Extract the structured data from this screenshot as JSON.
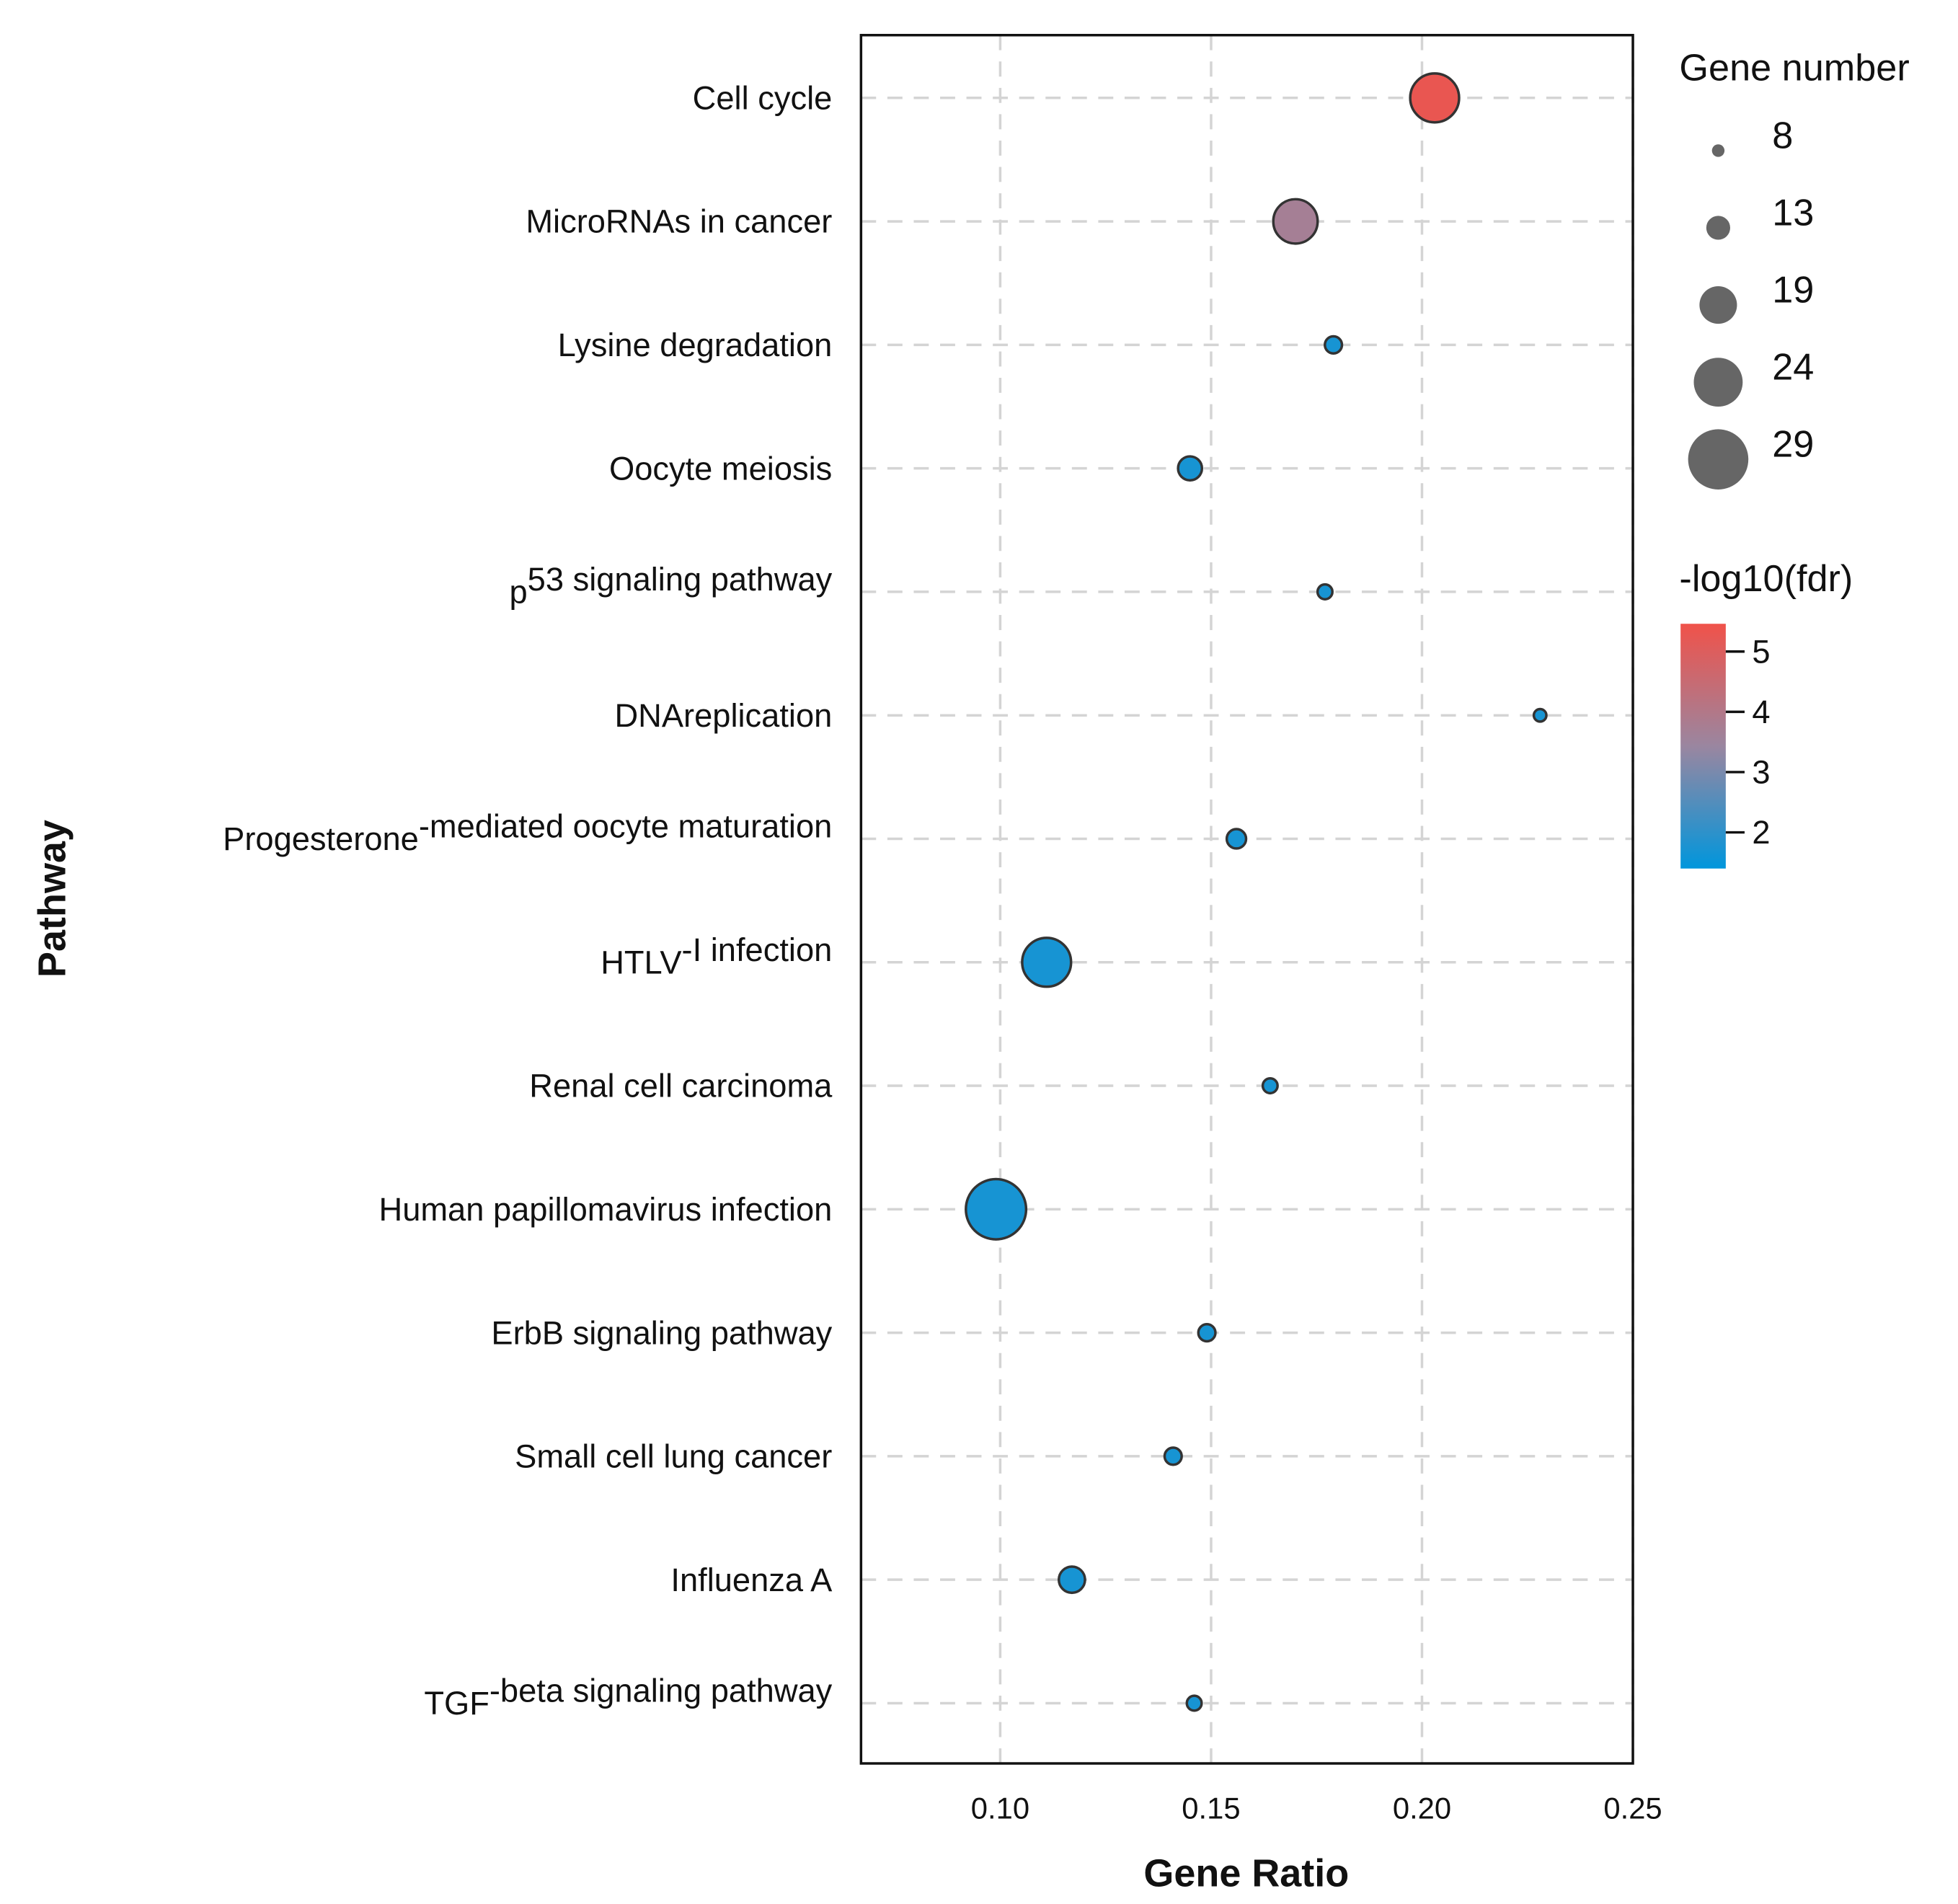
{
  "chart_data": {
    "type": "scatter",
    "subtype": "bubble",
    "xlabel": "Gene Ratio",
    "ylabel": "Pathway",
    "xlim": [
      0.067,
      0.25
    ],
    "xticks": [
      "0.10",
      "0.15",
      "0.20",
      "0.25"
    ],
    "xtick_values": [
      0.1,
      0.15,
      0.2,
      0.25
    ],
    "grid": true,
    "points": [
      {
        "pathway": "Cell cycle",
        "label_base": "Cell cycle",
        "label_sup": "",
        "gene_ratio": 0.203,
        "gene_number": 24,
        "neg_log10_fdr": 5.3
      },
      {
        "pathway": "MicroRNAs in cancer",
        "label_base": "MicroRNAs in cancer",
        "label_sup": "",
        "gene_ratio": 0.17,
        "gene_number": 22,
        "neg_log10_fdr": 3.7
      },
      {
        "pathway": "Lysine degradation",
        "label_base": "Lysine degradation",
        "label_sup": "",
        "gene_ratio": 0.179,
        "gene_number": 10,
        "neg_log10_fdr": 1.7
      },
      {
        "pathway": "Oocyte meiosis",
        "label_base": "Oocyte meiosis",
        "label_sup": "",
        "gene_ratio": 0.145,
        "gene_number": 13,
        "neg_log10_fdr": 1.7
      },
      {
        "pathway": "p53 signaling pathway",
        "label_base": "p",
        "label_sup": "53 signaling pathway",
        "gene_ratio": 0.177,
        "gene_number": 9,
        "neg_log10_fdr": 1.7
      },
      {
        "pathway": "DNAreplication",
        "label_base": "DNAreplication",
        "label_sup": "",
        "gene_ratio": 0.228,
        "gene_number": 8,
        "neg_log10_fdr": 1.7
      },
      {
        "pathway": "Progesterone-mediated oocyte maturation",
        "label_base": "Progesterone",
        "label_sup": "-mediated oocyte maturation",
        "gene_ratio": 0.156,
        "gene_number": 11,
        "neg_log10_fdr": 1.7
      },
      {
        "pathway": "HTLV-I infection",
        "label_base": "HTLV",
        "label_sup": "-I infection",
        "gene_ratio": 0.111,
        "gene_number": 24,
        "neg_log10_fdr": 1.7
      },
      {
        "pathway": "Renal cell carcinoma",
        "label_base": "Renal cell carcinoma",
        "label_sup": "",
        "gene_ratio": 0.164,
        "gene_number": 9,
        "neg_log10_fdr": 1.7
      },
      {
        "pathway": "Human papillomavirus infection",
        "label_base": "Human papillomavirus infection",
        "label_sup": "",
        "gene_ratio": 0.099,
        "gene_number": 29,
        "neg_log10_fdr": 1.7
      },
      {
        "pathway": "ErbB signaling pathway",
        "label_base": "ErbB signaling pathway",
        "label_sup": "",
        "gene_ratio": 0.149,
        "gene_number": 10,
        "neg_log10_fdr": 1.7
      },
      {
        "pathway": "Small cell lung cancer",
        "label_base": "Small cell lung cancer",
        "label_sup": "",
        "gene_ratio": 0.141,
        "gene_number": 10,
        "neg_log10_fdr": 1.7
      },
      {
        "pathway": "Influenza A",
        "label_base": "Influenza A",
        "label_sup": "",
        "gene_ratio": 0.117,
        "gene_number": 14,
        "neg_log10_fdr": 1.7
      },
      {
        "pathway": "TGF-beta signaling pathway",
        "label_base": "TGF",
        "label_sup": "-beta signaling pathway",
        "gene_ratio": 0.146,
        "gene_number": 9,
        "neg_log10_fdr": 1.7
      }
    ],
    "size_legend": {
      "title": "Gene number",
      "values": [
        "8",
        "13",
        "19",
        "24",
        "29"
      ]
    },
    "color_legend": {
      "title": "-log10(fdr)",
      "ticks": [
        "5",
        "4",
        "3",
        "2"
      ],
      "tick_values": [
        5,
        4,
        3,
        2
      ],
      "range": [
        1.4,
        5.46
      ],
      "low_color": "#0096dc",
      "high_color": "#f0524a"
    },
    "legend_placement": "right"
  }
}
